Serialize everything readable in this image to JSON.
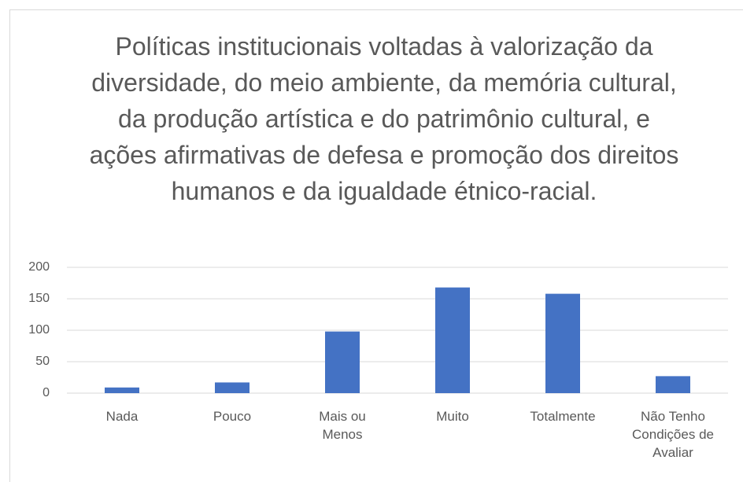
{
  "chart_data": {
    "type": "bar",
    "title": "Políticas institucionais voltadas à valorização da diversidade, do meio ambiente, da memória cultural, da produção artística e do patrimônio cultural, e ações afirmativas de defesa e promoção dos direitos humanos e da igualdade étnico-racial.",
    "categories": [
      "Nada",
      "Pouco",
      "Mais ou Menos",
      "Muito",
      "Totalmente",
      "Não Tenho Condições de Avaliar"
    ],
    "values": [
      9,
      17,
      98,
      168,
      158,
      27
    ],
    "color": "#4472c4",
    "ylim": [
      0,
      200
    ],
    "yticks": [
      0,
      50,
      100,
      150,
      200
    ],
    "grid": true
  }
}
